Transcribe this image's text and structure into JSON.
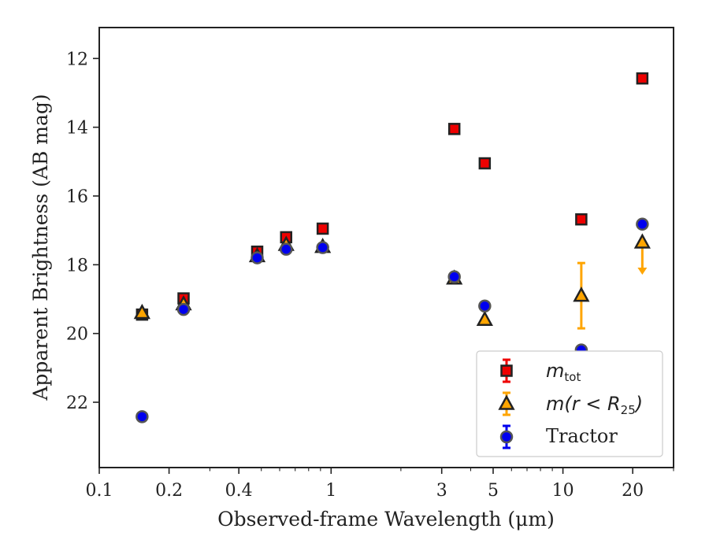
{
  "chart_data": {
    "type": "scatter",
    "title": "",
    "xlabel": "Observed-frame Wavelength (μm)",
    "ylabel": "Apparent Brightness (AB mag)",
    "xscale": "log",
    "xlim": [
      0.1,
      30
    ],
    "ylim": [
      23.9,
      11.1
    ],
    "y_inverted": true,
    "xticks": [
      {
        "value": 0.1,
        "label": "0.1"
      },
      {
        "value": 0.2,
        "label": "0.2"
      },
      {
        "value": 0.4,
        "label": "0.4"
      },
      {
        "value": 1,
        "label": "1"
      },
      {
        "value": 3,
        "label": "3"
      },
      {
        "value": 5,
        "label": "5"
      },
      {
        "value": 10,
        "label": "10"
      },
      {
        "value": 20,
        "label": "20"
      }
    ],
    "yticks": [
      12,
      14,
      16,
      18,
      20,
      22
    ],
    "grid": false,
    "legend_position": "bottom-right",
    "series": [
      {
        "label": "m_tot",
        "marker": "square",
        "color": "#ee0000",
        "edge_color": "#222222",
        "points": [
          {
            "x": 0.153,
            "y": 19.45
          },
          {
            "x": 0.231,
            "y": 18.98
          },
          {
            "x": 0.48,
            "y": 17.62
          },
          {
            "x": 0.64,
            "y": 17.2
          },
          {
            "x": 0.92,
            "y": 16.95
          },
          {
            "x": 3.4,
            "y": 14.05
          },
          {
            "x": 4.6,
            "y": 15.05
          },
          {
            "x": 12.0,
            "y": 16.68
          },
          {
            "x": 22.0,
            "y": 12.58
          }
        ]
      },
      {
        "label": "m(r < R25)",
        "marker": "triangle",
        "color": "#ffa500",
        "edge_color": "#222222",
        "points": [
          {
            "x": 0.153,
            "y": 19.4
          },
          {
            "x": 0.231,
            "y": 19.15
          },
          {
            "x": 0.48,
            "y": 17.75
          },
          {
            "x": 0.64,
            "y": 17.42
          },
          {
            "x": 0.92,
            "y": 17.48
          },
          {
            "x": 3.4,
            "y": 18.4
          },
          {
            "x": 4.6,
            "y": 19.6
          },
          {
            "x": 12.0,
            "y": 18.9,
            "yerr": 0.95
          },
          {
            "x": 22.0,
            "y": 17.35,
            "upper_limit": true
          }
        ]
      },
      {
        "label": "Tractor",
        "marker": "circle",
        "color": "#0000ee",
        "edge_color": "#555555",
        "points": [
          {
            "x": 0.153,
            "y": 22.42
          },
          {
            "x": 0.231,
            "y": 19.3
          },
          {
            "x": 0.48,
            "y": 17.8
          },
          {
            "x": 0.64,
            "y": 17.55
          },
          {
            "x": 0.92,
            "y": 17.5
          },
          {
            "x": 3.4,
            "y": 18.35
          },
          {
            "x": 4.6,
            "y": 19.2
          },
          {
            "x": 12.0,
            "y": 20.48
          },
          {
            "x": 22.0,
            "y": 16.82
          }
        ]
      }
    ]
  },
  "legend": {
    "mtot_main": "m",
    "mtot_sub": "tot",
    "mr_main": "m(r < R",
    "mr_sub": "25",
    "mr_close": ")",
    "tractor": "Tractor"
  }
}
